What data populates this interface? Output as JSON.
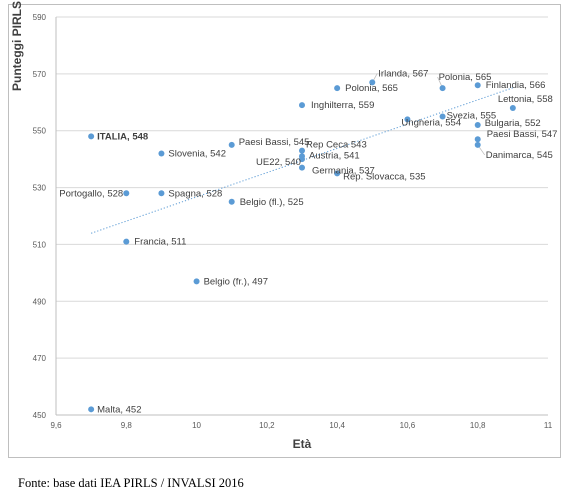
{
  "chart_data": {
    "type": "scatter",
    "xlabel": "Età",
    "ylabel": "Punteggi PIRLS",
    "xlim": [
      9.6,
      11
    ],
    "ylim": [
      450,
      590
    ],
    "x_ticks": [
      "9,6",
      "9,8",
      "10",
      "10,2",
      "10,4",
      "10,6",
      "10,8",
      "11"
    ],
    "y_ticks": [
      "450",
      "470",
      "490",
      "510",
      "530",
      "550",
      "570",
      "590"
    ],
    "grid": "horizontal",
    "trendline": "linear, dotted",
    "point_color": "#5b9bd5",
    "points": [
      {
        "label": "ITALIA, 548",
        "x": 9.7,
        "y": 548,
        "bold": true
      },
      {
        "label": "Malta, 452",
        "x": 9.7,
        "y": 452
      },
      {
        "label": "Portogallo, 528",
        "x": 9.8,
        "y": 528
      },
      {
        "label": "Francia, 511",
        "x": 9.8,
        "y": 511
      },
      {
        "label": "Slovenia, 542",
        "x": 9.9,
        "y": 542
      },
      {
        "label": "Spagna, 528",
        "x": 9.9,
        "y": 528
      },
      {
        "label": "Belgio (fr.), 497",
        "x": 10.0,
        "y": 497
      },
      {
        "label": "Paesi Bassi, 545",
        "x": 10.1,
        "y": 545
      },
      {
        "label": "Belgio (fl.), 525",
        "x": 10.1,
        "y": 525
      },
      {
        "label": "Inghilterra, 559",
        "x": 10.3,
        "y": 559
      },
      {
        "label": "Rep Ceca 543",
        "x": 10.3,
        "y": 543
      },
      {
        "label": "Austria, 541",
        "x": 10.3,
        "y": 541
      },
      {
        "label": "UE22, 540",
        "x": 10.3,
        "y": 540
      },
      {
        "label": "Germania, 537",
        "x": 10.3,
        "y": 537
      },
      {
        "label": "Polonia, 565",
        "x": 10.4,
        "y": 565
      },
      {
        "label": "Rep. Slovacca, 535",
        "x": 10.4,
        "y": 535
      },
      {
        "label": "Irlanda, 567",
        "x": 10.5,
        "y": 567
      },
      {
        "label": "Ungheria, 554",
        "x": 10.6,
        "y": 554
      },
      {
        "label": "Polonia, 565",
        "x": 10.7,
        "y": 565
      },
      {
        "label": "Svezia, 555",
        "x": 10.7,
        "y": 555
      },
      {
        "label": "Finlandia, 566",
        "x": 10.8,
        "y": 566
      },
      {
        "label": "Bulgaria, 552",
        "x": 10.8,
        "y": 552
      },
      {
        "label": "Paesi Bassi, 547",
        "x": 10.8,
        "y": 547
      },
      {
        "label": "Danimarca, 545",
        "x": 10.8,
        "y": 545
      },
      {
        "label": "Lettonia, 558",
        "x": 10.9,
        "y": 558
      }
    ]
  },
  "source": "Fonte: base dati IEA PIRLS / INVALSI 2016"
}
